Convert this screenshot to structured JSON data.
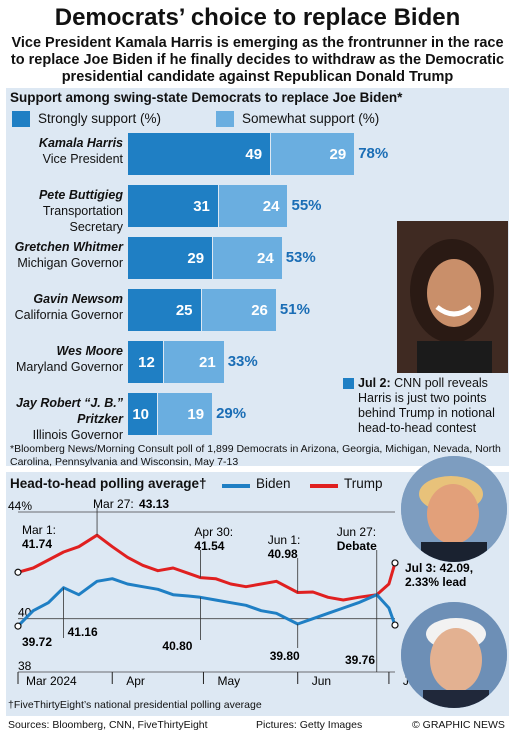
{
  "title": "Democrats’ choice to replace Biden",
  "subtitle": "Vice President Kamala Harris is emerging as the frontrunner in the race to replace Joe Biden if he finally decides to withdraw as the Democratic presidential candidate against Republican Donald Trump",
  "bar_section": {
    "heading": "Support among swing-state Democrats to replace Joe Biden*",
    "legend_strong": "Strongly support (%)",
    "legend_somewhat": "Somewhat support (%)",
    "colors": {
      "strong": "#1f7fc4",
      "somewhat": "#6aaee0",
      "total": "#1a6db5"
    },
    "footnote": "*Bloomberg News/Morning Consult poll of 1,899 Democrats in Arizona, Georgia, Michigan, Nevada, North Carolina, Pennsylvania and Wisconsin, May 7-13",
    "harris_caption_date": "Jul 2:",
    "harris_caption": "CNN poll reveals Harris is just two points behind Trump in notional head-to-head contest"
  },
  "people": [
    {
      "name": "Kamala Harris",
      "role": "Vice President"
    },
    {
      "name": "Pete Buttigieg",
      "role": "Transportation Secretary"
    },
    {
      "name": "Gretchen Whitmer",
      "role": "Michigan Governor"
    },
    {
      "name": "Gavin Newsom",
      "role": "California Governor"
    },
    {
      "name": "Wes Moore",
      "role": "Maryland Governor"
    },
    {
      "name": "Jay Robert “J. B.” Pritzker",
      "role": "Illinois Governor"
    }
  ],
  "line_section": {
    "heading": "Head-to-head polling average†",
    "legend_biden": "Biden",
    "legend_trump": "Trump",
    "colors": {
      "biden": "#1f7fc4",
      "trump": "#e02020"
    },
    "footnote": "†FiveThirtyEight’s national presidential polling average",
    "annotations": {
      "mar1_label": "Mar 1:",
      "mar1_val": "41.74",
      "mar27_label": "Mar 27:",
      "mar27_val": "43.13",
      "apr30_label": "Apr 30:",
      "apr30_val": "41.54",
      "jun1_label": "Jun 1:",
      "jun1_val": "40.98",
      "jun27_label": "Jun 27:",
      "jun27_debate": "Debate",
      "jul3_label": "Jul 3: 42.09,",
      "jul3_lead": "2.33% lead",
      "b_start": "39.72",
      "b_mar": "41.16",
      "b_apr30": "40.80",
      "b_jun1": "39.80",
      "b_end": "39.76"
    }
  },
  "chart_data": [
    {
      "type": "bar",
      "title": "Support among swing-state Democrats to replace Joe Biden*",
      "categories": [
        "Kamala Harris",
        "Pete Buttigieg",
        "Gretchen Whitmer",
        "Gavin Newsom",
        "Wes Moore",
        "Jay Robert “J. B.” Pritzker"
      ],
      "series": [
        {
          "name": "Strongly support (%)",
          "values": [
            49,
            31,
            29,
            25,
            12,
            10
          ]
        },
        {
          "name": "Somewhat support (%)",
          "values": [
            29,
            24,
            24,
            26,
            21,
            19
          ]
        }
      ],
      "totals": [
        "78%",
        "55%",
        "53%",
        "51%",
        "33%",
        "29%"
      ],
      "stacked": true
    },
    {
      "type": "line",
      "title": "Head-to-head polling average†",
      "ylim": [
        38,
        44
      ],
      "yticks": [
        "44%",
        "40",
        "38"
      ],
      "xticks": [
        "Mar 2024",
        "Apr",
        "May",
        "Jun",
        "Jul"
      ],
      "x": [
        "2024-03-01",
        "2024-03-06",
        "2024-03-11",
        "2024-03-16",
        "2024-03-21",
        "2024-03-27",
        "2024-04-01",
        "2024-04-06",
        "2024-04-11",
        "2024-04-16",
        "2024-04-21",
        "2024-04-26",
        "2024-04-30",
        "2024-05-05",
        "2024-05-10",
        "2024-05-15",
        "2024-05-20",
        "2024-05-25",
        "2024-06-01",
        "2024-06-06",
        "2024-06-11",
        "2024-06-16",
        "2024-06-21",
        "2024-06-27",
        "2024-07-01",
        "2024-07-03"
      ],
      "series": [
        {
          "name": "Biden",
          "values": [
            39.72,
            40.3,
            40.6,
            41.16,
            40.9,
            41.4,
            41.5,
            41.3,
            41.2,
            41.1,
            40.9,
            40.85,
            40.8,
            40.7,
            40.6,
            40.5,
            40.3,
            40.2,
            39.8,
            40.0,
            40.2,
            40.4,
            40.6,
            40.9,
            40.4,
            39.76
          ]
        },
        {
          "name": "Trump",
          "values": [
            41.74,
            41.9,
            42.2,
            42.5,
            42.7,
            43.13,
            42.7,
            42.3,
            42.0,
            41.8,
            41.9,
            41.7,
            41.54,
            41.5,
            41.3,
            41.2,
            41.3,
            41.4,
            40.98,
            41.0,
            40.8,
            40.7,
            40.8,
            40.9,
            41.3,
            42.09
          ]
        }
      ]
    }
  ],
  "footer": {
    "sources": "Sources: Bloomberg, CNN, FiveThirtyEight",
    "pictures": "Pictures: Getty Images",
    "credit": "© GRAPHIC NEWS"
  }
}
